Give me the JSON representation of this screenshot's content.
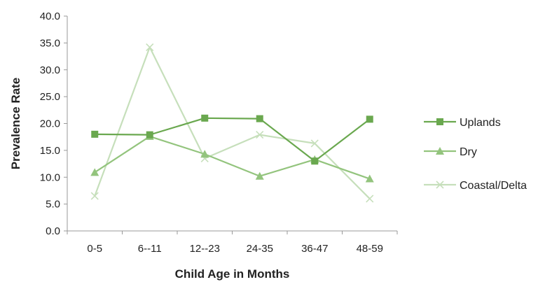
{
  "chart_data": {
    "type": "line",
    "categories": [
      "0-5",
      "6--11",
      "12--23",
      "24-35",
      "36-47",
      "48-59"
    ],
    "series": [
      {
        "name": "Uplands",
        "values": [
          18.0,
          17.9,
          21.0,
          20.9,
          13.0,
          20.8
        ],
        "color": "#6aa84f",
        "marker": "square"
      },
      {
        "name": "Dry",
        "values": [
          10.9,
          17.6,
          14.3,
          10.2,
          13.3,
          9.7
        ],
        "color": "#93c47d",
        "marker": "triangle"
      },
      {
        "name": "Coastal/Delta",
        "values": [
          6.5,
          34.2,
          13.5,
          17.9,
          16.3,
          6.0
        ],
        "color": "#c6dfbb",
        "marker": "x"
      }
    ],
    "xlabel": "Child Age in Months",
    "ylabel": "Prevalence Rate",
    "ylim": [
      0,
      40
    ],
    "yticks": [
      "0.0",
      "5.0",
      "10.0",
      "15.0",
      "20.0",
      "25.0",
      "30.0",
      "35.0",
      "40.0"
    ],
    "grid": false,
    "legend": "right"
  }
}
